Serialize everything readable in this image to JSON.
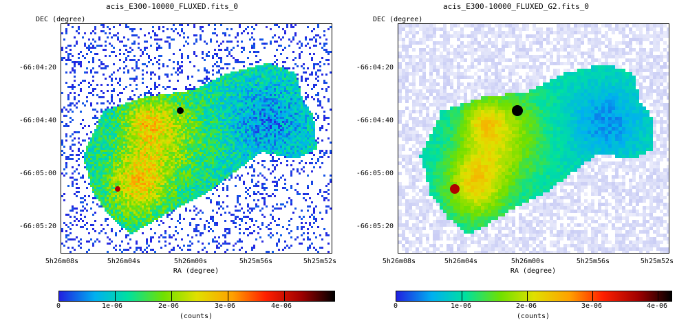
{
  "panels": [
    {
      "title": "acis_E300-10000_FLUXED.fits_0",
      "y_axis_label": "DEC (degree)",
      "x_axis_label": "RA (degree)",
      "y_ticks": [
        "-66:04:20",
        "-66:04:40",
        "-66:05:00",
        "-66:05:20"
      ],
      "x_ticks": [
        "5h26m08s",
        "5h26m04s",
        "5h26m00s",
        "5h25m56s",
        "5h25m52s"
      ],
      "colorbar_ticks": [
        "0",
        "1e-06",
        "2e-06",
        "3e-06",
        "4e-06"
      ],
      "colorbar_label": "(counts)",
      "smoothing": "raw",
      "colormap": [
        "#ffffff",
        "#2020e0",
        "#00b0f0",
        "#00e0a0",
        "#70e000",
        "#e0e000",
        "#ffa000",
        "#ff2000",
        "#a00000",
        "#000000"
      ]
    },
    {
      "title": "acis_E300-10000_FLUXED_G2.fits_0",
      "y_axis_label": "DEC (degree)",
      "x_axis_label": "RA (degree)",
      "y_ticks": [
        "-66:04:20",
        "-66:04:40",
        "-66:05:00",
        "-66:05:20"
      ],
      "x_ticks": [
        "5h26m08s",
        "5h26m04s",
        "5h26m00s",
        "5h25m56s",
        "5h25m52s"
      ],
      "colorbar_ticks": [
        "0",
        "1e-06",
        "2e-06",
        "3e-06",
        "4e-06"
      ],
      "colorbar_label": "(counts)",
      "smoothing": "gaussian",
      "colormap": [
        "#ffffff",
        "#2020e0",
        "#00b0f0",
        "#00e0a0",
        "#70e000",
        "#e0e000",
        "#ffa000",
        "#ff2000",
        "#a00000",
        "#000000"
      ]
    }
  ]
}
